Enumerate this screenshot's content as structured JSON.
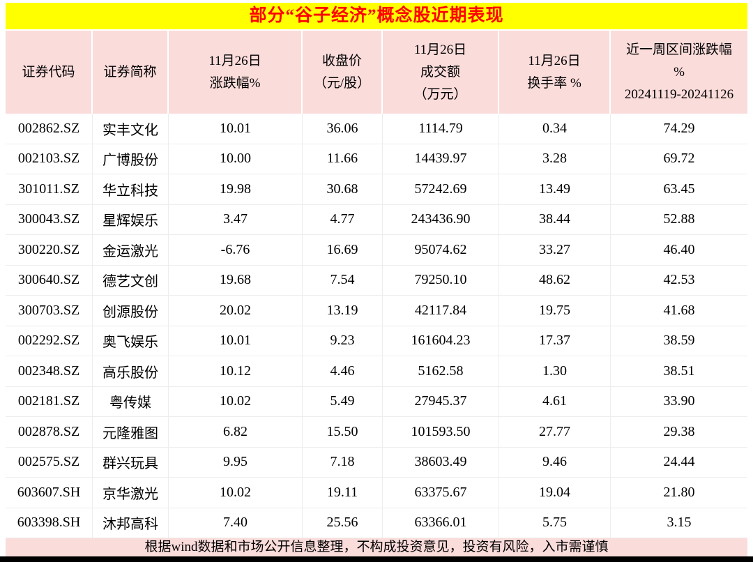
{
  "title": "部分“谷子经济”概念股近期表现",
  "footer": "根据wind数据和市场公开信息整理，不构成投资意见，投资有风险，入市需谨慎",
  "colors": {
    "title_bg": "#ffff00",
    "title_text": "#ff0000",
    "header_bg": "#fadcdb",
    "footer_bg": "#fadcdb",
    "bottom_bar": "#000000"
  },
  "table": {
    "headers": [
      {
        "name": "code",
        "lines": [
          "证券代码"
        ]
      },
      {
        "name": "name",
        "lines": [
          "证券简称"
        ]
      },
      {
        "name": "daily-change",
        "lines": [
          "11月26日",
          "涨跌幅%"
        ]
      },
      {
        "name": "close-price",
        "lines": [
          "收盘价",
          "（元/股）"
        ]
      },
      {
        "name": "turnover",
        "lines": [
          "11月26日",
          "成交额",
          "（万元）"
        ]
      },
      {
        "name": "turnover-rate",
        "lines": [
          "11月26日",
          "换手率 %"
        ]
      },
      {
        "name": "weekly-change",
        "lines": [
          "近一周区间涨跌幅",
          "%",
          "20241119-20241126"
        ]
      }
    ],
    "col_names": [
      "code",
      "name",
      "daily-change",
      "close-price",
      "turnover",
      "turnover-rate",
      "weekly-change"
    ]
  },
  "chart_data": {
    "type": "table",
    "title": "部分“谷子经济”概念股近期表现",
    "columns": [
      "证券代码",
      "证券简称",
      "11月26日涨跌幅%",
      "收盘价（元/股）",
      "11月26日成交额（万元）",
      "11月26日换手率 %",
      "近一周区间涨跌幅% 20241119-20241126"
    ],
    "rows": [
      [
        "002862.SZ",
        "实丰文化",
        "10.01",
        "36.06",
        "1114.79",
        "0.34",
        "74.29"
      ],
      [
        "002103.SZ",
        "广博股份",
        "10.00",
        "11.66",
        "14439.97",
        "3.28",
        "69.72"
      ],
      [
        "301011.SZ",
        "华立科技",
        "19.98",
        "30.68",
        "57242.69",
        "13.49",
        "63.45"
      ],
      [
        "300043.SZ",
        "星辉娱乐",
        "3.47",
        "4.77",
        "243436.90",
        "38.44",
        "52.88"
      ],
      [
        "300220.SZ",
        "金运激光",
        "-6.76",
        "16.69",
        "95074.62",
        "33.27",
        "46.40"
      ],
      [
        "300640.SZ",
        "德艺文创",
        "19.68",
        "7.54",
        "79250.10",
        "48.62",
        "42.53"
      ],
      [
        "300703.SZ",
        "创源股份",
        "20.02",
        "13.19",
        "42117.84",
        "19.75",
        "41.68"
      ],
      [
        "002292.SZ",
        "奥飞娱乐",
        "10.01",
        "9.23",
        "161604.23",
        "17.37",
        "38.59"
      ],
      [
        "002348.SZ",
        "高乐股份",
        "10.12",
        "4.46",
        "5162.58",
        "1.30",
        "38.51"
      ],
      [
        "002181.SZ",
        "粤传媒",
        "10.02",
        "5.49",
        "27945.37",
        "4.61",
        "33.90"
      ],
      [
        "002878.SZ",
        "元隆雅图",
        "6.82",
        "15.50",
        "101593.50",
        "27.77",
        "29.38"
      ],
      [
        "002575.SZ",
        "群兴玩具",
        "9.95",
        "7.18",
        "38603.49",
        "9.46",
        "24.44"
      ],
      [
        "603607.SH",
        "京华激光",
        "10.02",
        "19.11",
        "63375.67",
        "19.04",
        "21.80"
      ],
      [
        "603398.SH",
        "沐邦高科",
        "7.40",
        "25.56",
        "63366.01",
        "5.75",
        "3.15"
      ]
    ]
  }
}
